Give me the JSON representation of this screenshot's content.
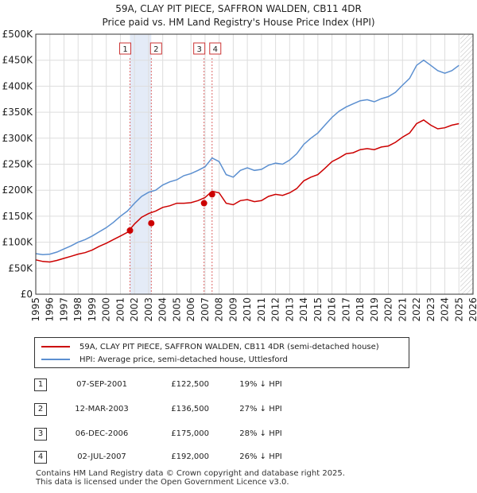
{
  "chart_data": {
    "type": "line",
    "title": "59A, CLAY PIT PIECE, SAFFRON WALDEN, CB11 4DR",
    "subtitle": "Price paid vs. HM Land Registry's House Price Index (HPI)",
    "xlim": [
      1995,
      2026
    ],
    "ylim": [
      0,
      500000
    ],
    "x_ticks": [
      1995,
      1996,
      1997,
      1998,
      1999,
      2000,
      2001,
      2002,
      2003,
      2004,
      2005,
      2006,
      2007,
      2008,
      2009,
      2010,
      2011,
      2012,
      2013,
      2014,
      2015,
      2016,
      2017,
      2018,
      2019,
      2020,
      2021,
      2022,
      2023,
      2024,
      2025,
      2026
    ],
    "y_ticks": [
      {
        "value": 0,
        "label": "£0"
      },
      {
        "value": 50000,
        "label": "£50K"
      },
      {
        "value": 100000,
        "label": "£100K"
      },
      {
        "value": 150000,
        "label": "£150K"
      },
      {
        "value": 200000,
        "label": "£200K"
      },
      {
        "value": 250000,
        "label": "£250K"
      },
      {
        "value": 300000,
        "label": "£300K"
      },
      {
        "value": 350000,
        "label": "£350K"
      },
      {
        "value": 400000,
        "label": "£400K"
      },
      {
        "value": 450000,
        "label": "£450K"
      },
      {
        "value": 500000,
        "label": "£500K"
      }
    ],
    "grid": true,
    "highlight_band": [
      2001.68,
      2003.19
    ],
    "forecast_start": 2025.1,
    "series": [
      {
        "name": "59A, CLAY PIT PIECE, SAFFRON WALDEN, CB11 4DR (semi-detached house)",
        "color": "#cc0000",
        "x": [
          1995.0,
          1995.5,
          1996.0,
          1996.5,
          1997.0,
          1997.5,
          1998.0,
          1998.5,
          1999.0,
          1999.5,
          2000.0,
          2000.5,
          2001.0,
          2001.5,
          2002.0,
          2002.5,
          2003.0,
          2003.5,
          2004.0,
          2004.5,
          2005.0,
          2005.5,
          2006.0,
          2006.5,
          2007.0,
          2007.5,
          2008.0,
          2008.5,
          2009.0,
          2009.5,
          2010.0,
          2010.5,
          2011.0,
          2011.5,
          2012.0,
          2012.5,
          2013.0,
          2013.5,
          2014.0,
          2014.5,
          2015.0,
          2015.5,
          2016.0,
          2016.5,
          2017.0,
          2017.5,
          2018.0,
          2018.5,
          2019.0,
          2019.5,
          2020.0,
          2020.5,
          2021.0,
          2021.5,
          2022.0,
          2022.5,
          2023.0,
          2023.5,
          2024.0,
          2024.5,
          2025.0
        ],
        "y": [
          66000,
          63000,
          62000,
          65000,
          69000,
          73000,
          77000,
          80000,
          85000,
          92000,
          98000,
          105000,
          112000,
          119000,
          135000,
          148000,
          155000,
          160000,
          167000,
          170000,
          175000,
          175000,
          176000,
          180000,
          186000,
          198000,
          195000,
          175000,
          172000,
          180000,
          182000,
          178000,
          180000,
          188000,
          192000,
          190000,
          195000,
          203000,
          218000,
          225000,
          230000,
          242000,
          255000,
          262000,
          270000,
          272000,
          278000,
          280000,
          278000,
          283000,
          285000,
          292000,
          302000,
          310000,
          328000,
          335000,
          325000,
          318000,
          320000,
          325000,
          328000
        ]
      },
      {
        "name": "HPI: Average price, semi-detached house, Uttlesford",
        "color": "#5b8fd0",
        "x": [
          1995.0,
          1995.5,
          1996.0,
          1996.5,
          1997.0,
          1997.5,
          1998.0,
          1998.5,
          1999.0,
          1999.5,
          2000.0,
          2000.5,
          2001.0,
          2001.5,
          2002.0,
          2002.5,
          2003.0,
          2003.5,
          2004.0,
          2004.5,
          2005.0,
          2005.5,
          2006.0,
          2006.5,
          2007.0,
          2007.5,
          2008.0,
          2008.5,
          2009.0,
          2009.5,
          2010.0,
          2010.5,
          2011.0,
          2011.5,
          2012.0,
          2012.5,
          2013.0,
          2013.5,
          2014.0,
          2014.5,
          2015.0,
          2015.5,
          2016.0,
          2016.5,
          2017.0,
          2017.5,
          2018.0,
          2018.5,
          2019.0,
          2019.5,
          2020.0,
          2020.5,
          2021.0,
          2021.5,
          2022.0,
          2022.5,
          2023.0,
          2023.5,
          2024.0,
          2024.5,
          2025.0
        ],
        "y": [
          78000,
          76000,
          77000,
          81000,
          87000,
          93000,
          100000,
          105000,
          112000,
          120000,
          128000,
          138000,
          150000,
          160000,
          175000,
          188000,
          196000,
          200000,
          210000,
          216000,
          220000,
          228000,
          232000,
          238000,
          245000,
          262000,
          255000,
          230000,
          225000,
          238000,
          243000,
          238000,
          240000,
          248000,
          252000,
          250000,
          258000,
          270000,
          288000,
          300000,
          310000,
          325000,
          340000,
          352000,
          360000,
          366000,
          372000,
          374000,
          370000,
          376000,
          380000,
          388000,
          402000,
          415000,
          440000,
          450000,
          440000,
          430000,
          425000,
          430000,
          440000
        ]
      }
    ],
    "markers": [
      {
        "id": "1",
        "x": 2001.68,
        "y": 122500
      },
      {
        "id": "2",
        "x": 2003.19,
        "y": 136500
      },
      {
        "id": "3",
        "x": 2006.93,
        "y": 175000
      },
      {
        "id": "4",
        "x": 2007.5,
        "y": 192000
      }
    ]
  },
  "legend": {
    "property_label": "59A, CLAY PIT PIECE, SAFFRON WALDEN, CB11 4DR (semi-detached house)",
    "hpi_label": "HPI: Average price, semi-detached house, Uttlesford"
  },
  "transactions": [
    {
      "num": "1",
      "date": "07-SEP-2001",
      "price": "£122,500",
      "hpi": "19% ↓ HPI"
    },
    {
      "num": "2",
      "date": "12-MAR-2003",
      "price": "£136,500",
      "hpi": "27% ↓ HPI"
    },
    {
      "num": "3",
      "date": "06-DEC-2006",
      "price": "£175,000",
      "hpi": "28% ↓ HPI"
    },
    {
      "num": "4",
      "date": "02-JUL-2007",
      "price": "£192,000",
      "hpi": "26% ↓ HPI"
    }
  ],
  "footer": {
    "line1": "Contains HM Land Registry data © Crown copyright and database right 2025.",
    "line2": "This data is licensed under the Open Government Licence v3.0."
  }
}
